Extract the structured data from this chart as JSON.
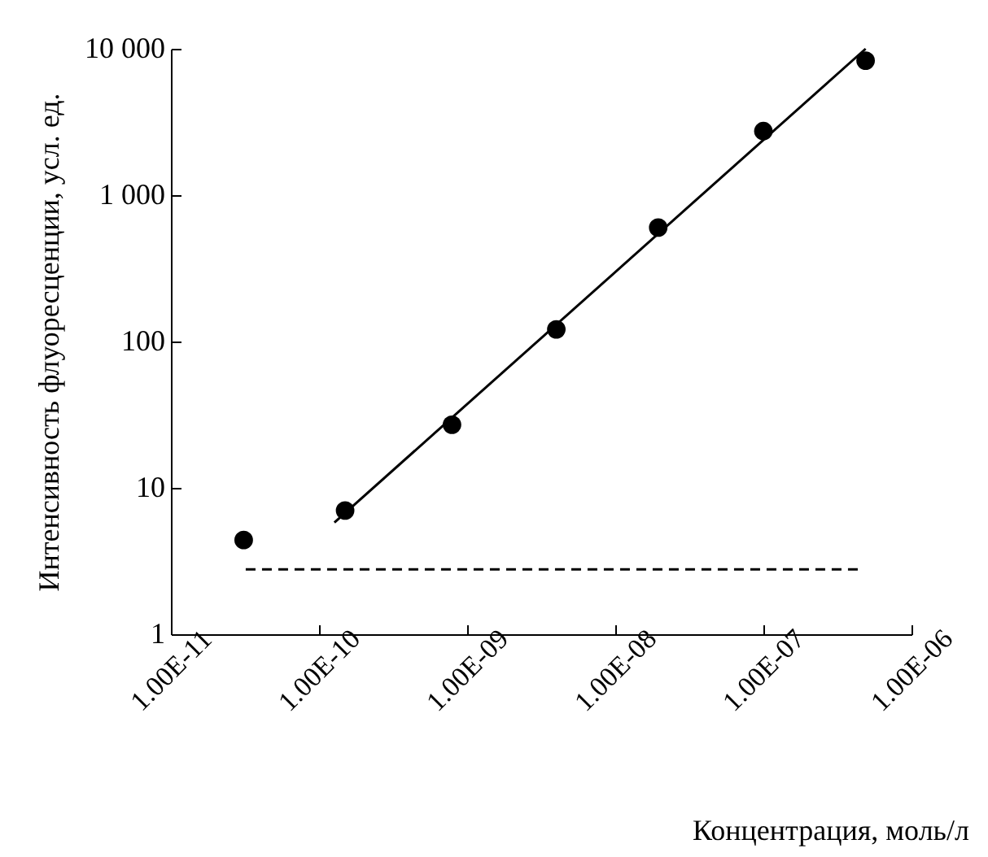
{
  "chart_data": {
    "type": "scatter",
    "xlabel": "Концентрация, моль/л",
    "ylabel": "Интенсивность флуоресценции, усл. ед.",
    "log": "xy",
    "xlim": [
      1e-11,
      1e-06
    ],
    "ylim": [
      1,
      10000
    ],
    "xticks": [
      {
        "value": 1e-11,
        "label": "1.00E-11"
      },
      {
        "value": 1e-10,
        "label": "1.00E-10"
      },
      {
        "value": 1e-09,
        "label": "1.00E-09"
      },
      {
        "value": 1e-08,
        "label": "1.00E-08"
      },
      {
        "value": 1e-07,
        "label": "1.00E-07"
      },
      {
        "value": 1e-06,
        "label": "1.00E-06"
      }
    ],
    "yticks": [
      1,
      10,
      100,
      {
        "value": 1000,
        "label": "1 000"
      },
      {
        "value": 10000,
        "label": "10 000"
      }
    ],
    "series": [
      {
        "color": "#000000",
        "marker": "circle",
        "x": [
          3.1e-11,
          1.5e-10,
          7.9e-10,
          4e-09,
          1.95e-08,
          1e-07,
          4.9e-07
        ],
        "values": [
          4.4,
          7.0,
          27,
          121,
          600,
          2740,
          8300
        ]
      },
      {
        "type": "line",
        "color": "#000000",
        "marker": "none",
        "line_style": "solid",
        "x": [
          1.27e-10,
          4.9e-07
        ],
        "values": [
          5.8,
          10000
        ]
      },
      {
        "type": "line",
        "color": "#000000",
        "marker": "none",
        "line_style": "dashed",
        "x": [
          3.2e-11,
          4.4e-07
        ],
        "values": [
          2.77,
          2.77
        ]
      }
    ]
  }
}
